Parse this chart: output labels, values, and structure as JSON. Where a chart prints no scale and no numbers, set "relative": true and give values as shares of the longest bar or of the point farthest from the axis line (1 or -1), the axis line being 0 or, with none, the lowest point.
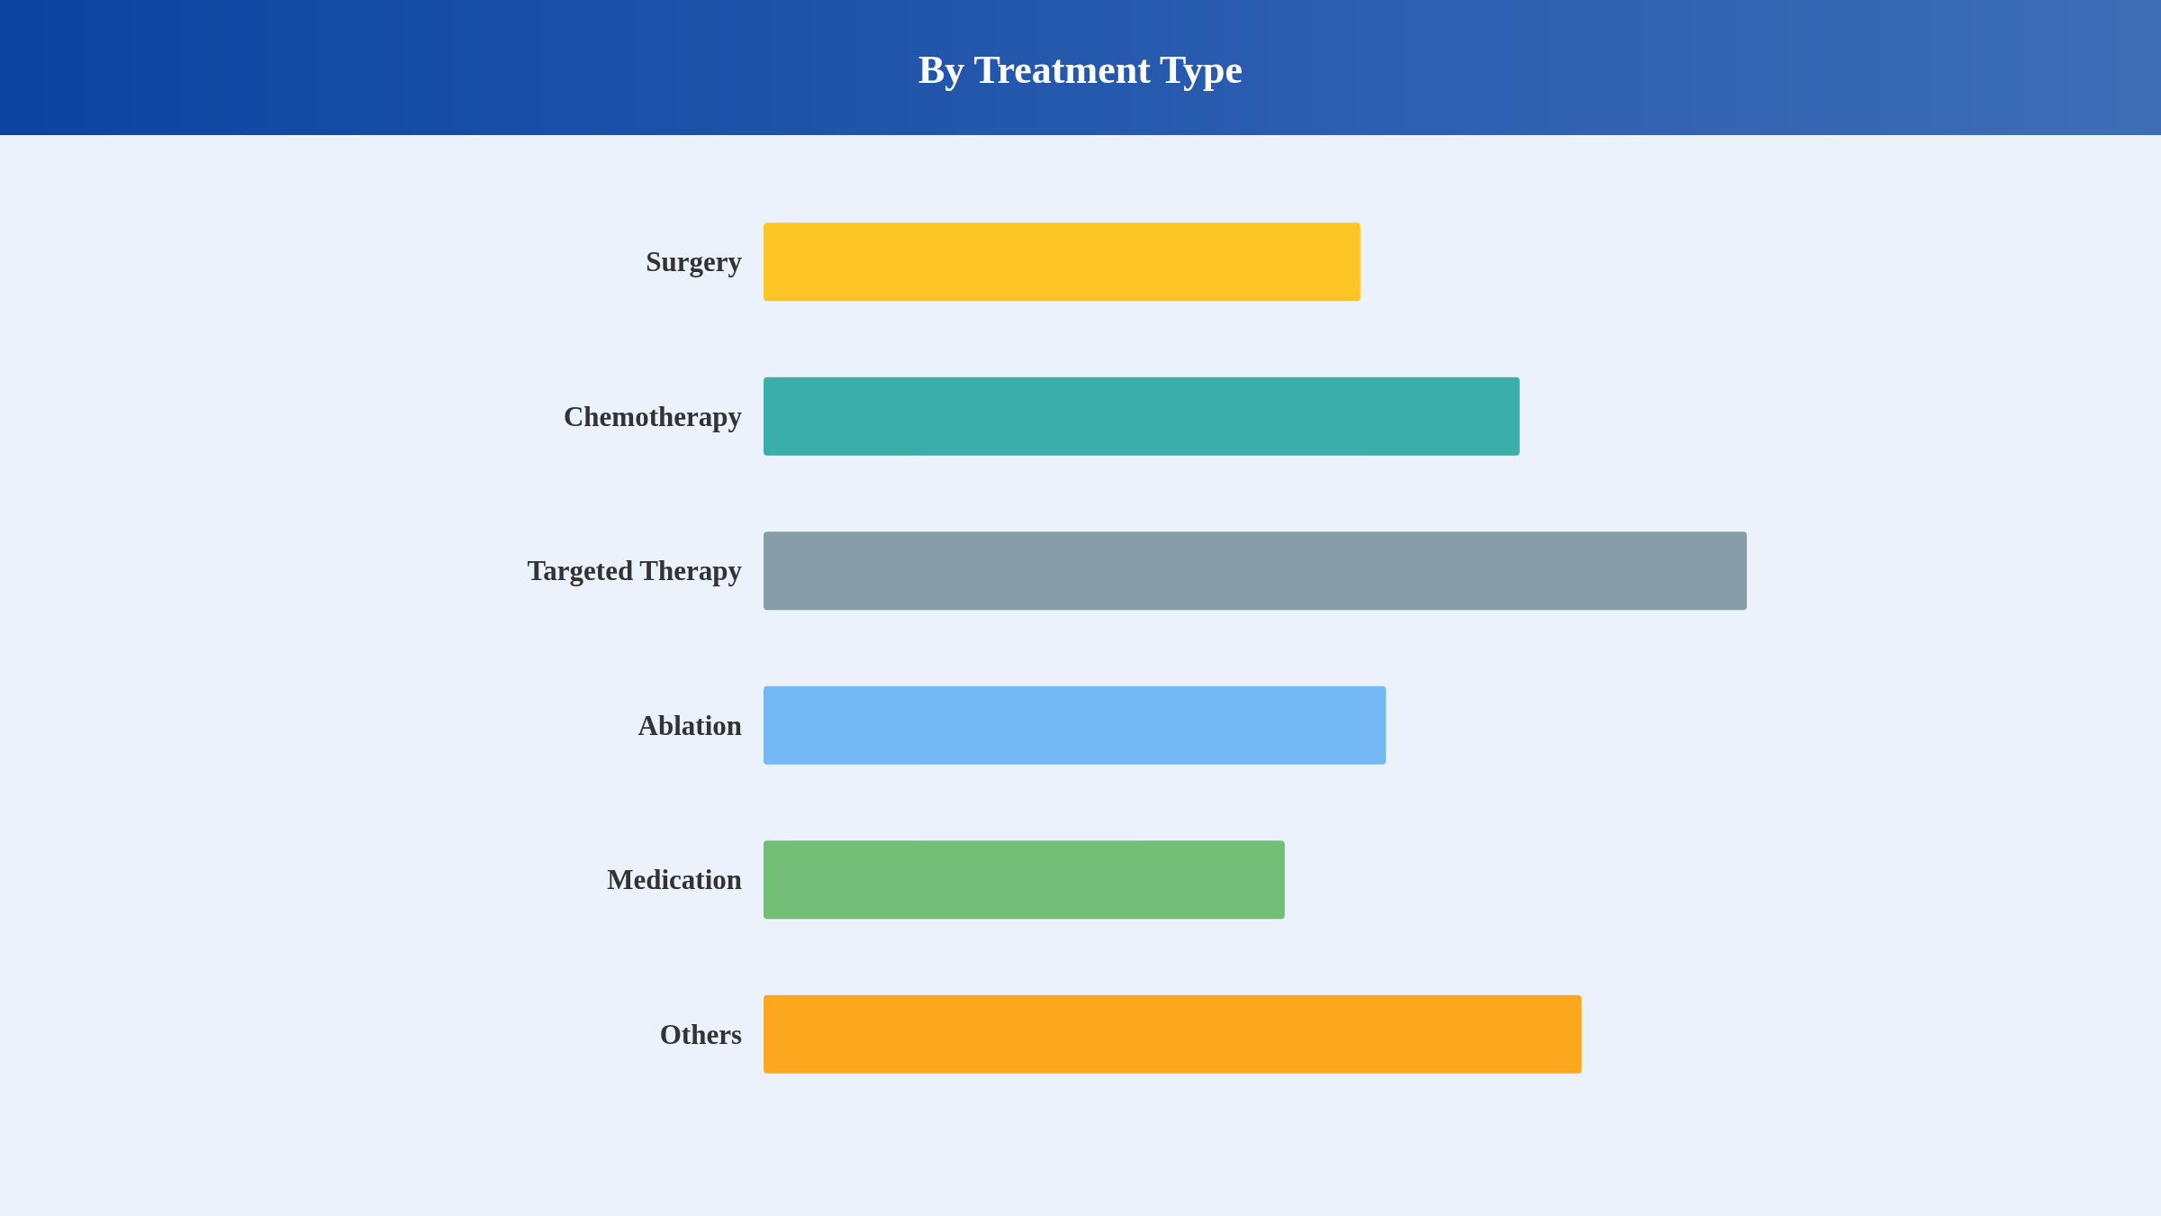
{
  "chart_data": {
    "type": "bar",
    "title": "By Treatment Type",
    "orientation": "horizontal",
    "relative": true,
    "categories": [
      "Surgery",
      "Chemotherapy",
      "Targeted Therapy",
      "Ablation",
      "Medication",
      "Others"
    ],
    "values": [
      0.607,
      0.769,
      1,
      0.633,
      0.53,
      0.832
    ],
    "colors": [
      "#fdc624",
      "#3aafa9",
      "#869ca6",
      "#74b9f4",
      "#74bf78",
      "#fba81f"
    ]
  }
}
